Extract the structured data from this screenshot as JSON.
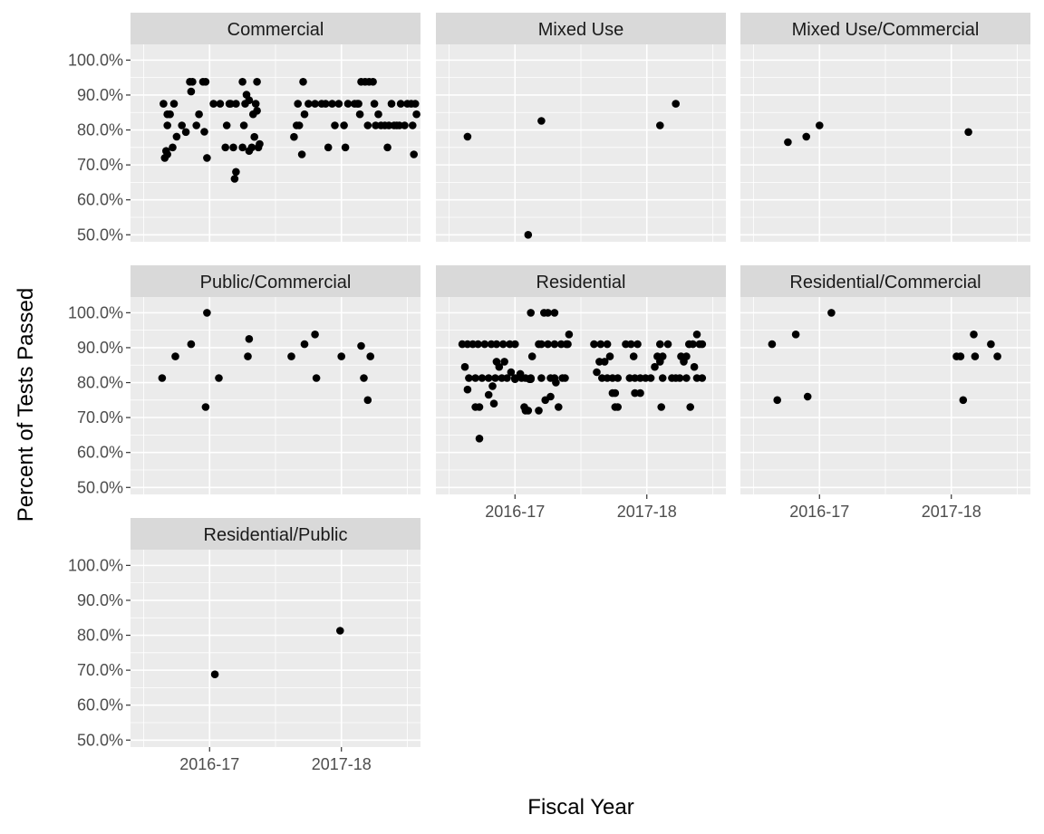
{
  "chart_data": {
    "type": "scatter",
    "facet_layout": "wrap-3-columns",
    "xlabel": "Fiscal Year",
    "ylabel": "Percent of Tests Passed",
    "x_categories": [
      "2016-17",
      "2017-18"
    ],
    "y_ticks": [
      0.5,
      0.6,
      0.7,
      0.8,
      0.9,
      1.0
    ],
    "y_tick_labels": [
      "50.0%",
      "60.0%",
      "70.0%",
      "80.0%",
      "90.0%",
      "100.0%"
    ],
    "ylim": [
      0.48,
      1.045
    ],
    "grid": true,
    "colors": {
      "panel": "#ebebeb",
      "strip": "#d9d9d9",
      "grid": "#ffffff",
      "point": "#000000"
    },
    "facets": [
      {
        "name": "Commercial",
        "points": [
          [
            0.7,
            0.845
          ],
          [
            0.73,
            0.875
          ],
          [
            0.68,
            0.845
          ],
          [
            0.65,
            0.875
          ],
          [
            0.68,
            0.813
          ],
          [
            0.67,
            0.74
          ],
          [
            0.66,
            0.72
          ],
          [
            0.68,
            0.73
          ],
          [
            0.75,
            0.781
          ],
          [
            0.72,
            0.75
          ],
          [
            0.85,
            0.938
          ],
          [
            0.87,
            0.938
          ],
          [
            0.79,
            0.813
          ],
          [
            0.82,
            0.794
          ],
          [
            0.86,
            0.91
          ],
          [
            0.92,
            0.845
          ],
          [
            0.95,
            0.938
          ],
          [
            0.97,
            0.938
          ],
          [
            0.9,
            0.813
          ],
          [
            0.96,
            0.795
          ],
          [
            0.98,
            0.72
          ],
          [
            1.03,
            0.875
          ],
          [
            1.08,
            0.875
          ],
          [
            1.15,
            0.875
          ],
          [
            1.16,
            0.875
          ],
          [
            1.2,
            0.875
          ],
          [
            1.25,
            0.938
          ],
          [
            1.27,
            0.875
          ],
          [
            1.18,
            0.75
          ],
          [
            1.2,
            0.68
          ],
          [
            1.19,
            0.66
          ],
          [
            1.26,
            0.813
          ],
          [
            1.28,
            0.901
          ],
          [
            1.3,
            0.885
          ],
          [
            1.33,
            0.845
          ],
          [
            1.36,
            0.855
          ],
          [
            1.35,
            0.875
          ],
          [
            1.36,
            0.938
          ],
          [
            1.32,
            0.75
          ],
          [
            1.34,
            0.78
          ],
          [
            1.37,
            0.75
          ],
          [
            1.38,
            0.76
          ],
          [
            1.25,
            0.75
          ],
          [
            1.3,
            0.74
          ],
          [
            1.12,
            0.75
          ],
          [
            1.13,
            0.813
          ],
          [
            1.64,
            0.78
          ],
          [
            1.66,
            0.813
          ],
          [
            1.68,
            0.813
          ],
          [
            1.67,
            0.875
          ],
          [
            1.7,
            0.73
          ],
          [
            1.71,
            0.938
          ],
          [
            1.72,
            0.845
          ],
          [
            1.75,
            0.875
          ],
          [
            1.8,
            0.875
          ],
          [
            1.85,
            0.875
          ],
          [
            1.88,
            0.875
          ],
          [
            1.9,
            0.75
          ],
          [
            1.93,
            0.875
          ],
          [
            1.95,
            0.813
          ],
          [
            1.98,
            0.875
          ],
          [
            2.02,
            0.813
          ],
          [
            2.05,
            0.875
          ],
          [
            2.1,
            0.875
          ],
          [
            2.12,
            0.875
          ],
          [
            2.13,
            0.875
          ],
          [
            2.14,
            0.845
          ],
          [
            2.15,
            0.938
          ],
          [
            2.18,
            0.938
          ],
          [
            2.21,
            0.938
          ],
          [
            2.24,
            0.938
          ],
          [
            2.25,
            0.875
          ],
          [
            2.26,
            0.813
          ],
          [
            2.28,
            0.845
          ],
          [
            2.3,
            0.813
          ],
          [
            2.33,
            0.813
          ],
          [
            2.36,
            0.813
          ],
          [
            2.38,
            0.875
          ],
          [
            2.4,
            0.813
          ],
          [
            2.42,
            0.813
          ],
          [
            2.44,
            0.813
          ],
          [
            2.45,
            0.875
          ],
          [
            2.5,
            0.875
          ],
          [
            2.53,
            0.875
          ],
          [
            2.54,
            0.813
          ],
          [
            2.55,
            0.73
          ],
          [
            2.57,
            0.845
          ],
          [
            2.56,
            0.875
          ],
          [
            2.03,
            0.75
          ],
          [
            2.35,
            0.75
          ],
          [
            2.48,
            0.813
          ],
          [
            2.2,
            0.813
          ]
        ]
      },
      {
        "name": "Mixed Use",
        "points": [
          [
            0.64,
            0.781
          ],
          [
            1.1,
            0.5
          ],
          [
            1.2,
            0.826
          ],
          [
            2.1,
            0.813
          ],
          [
            2.22,
            0.875
          ]
        ]
      },
      {
        "name": "Mixed Use/Commercial",
        "points": [
          [
            0.76,
            0.765
          ],
          [
            0.9,
            0.781
          ],
          [
            1.0,
            0.813
          ],
          [
            2.13,
            0.794
          ]
        ]
      },
      {
        "name": "Public/Commercial",
        "points": [
          [
            0.64,
            0.813
          ],
          [
            0.74,
            0.875
          ],
          [
            0.86,
            0.91
          ],
          [
            0.97,
            0.73
          ],
          [
            0.98,
            1.0
          ],
          [
            1.07,
            0.813
          ],
          [
            1.29,
            0.875
          ],
          [
            1.3,
            0.925
          ],
          [
            1.62,
            0.875
          ],
          [
            1.72,
            0.91
          ],
          [
            1.8,
            0.938
          ],
          [
            1.81,
            0.813
          ],
          [
            2.0,
            0.875
          ],
          [
            2.15,
            0.905
          ],
          [
            2.17,
            0.813
          ],
          [
            2.2,
            0.75
          ],
          [
            2.22,
            0.875
          ]
        ]
      },
      {
        "name": "Residential",
        "points": [
          [
            0.6,
            0.91
          ],
          [
            0.64,
            0.91
          ],
          [
            0.68,
            0.91
          ],
          [
            0.72,
            0.91
          ],
          [
            0.77,
            0.91
          ],
          [
            0.82,
            0.91
          ],
          [
            0.86,
            0.91
          ],
          [
            0.91,
            0.91
          ],
          [
            0.96,
            0.91
          ],
          [
            1.0,
            0.91
          ],
          [
            0.62,
            0.845
          ],
          [
            0.65,
            0.813
          ],
          [
            0.7,
            0.813
          ],
          [
            0.75,
            0.813
          ],
          [
            0.8,
            0.813
          ],
          [
            0.85,
            0.813
          ],
          [
            0.9,
            0.813
          ],
          [
            0.94,
            0.813
          ],
          [
            1.0,
            0.813
          ],
          [
            1.05,
            0.813
          ],
          [
            1.08,
            0.813
          ],
          [
            1.12,
            0.813
          ],
          [
            0.64,
            0.78
          ],
          [
            0.7,
            0.73
          ],
          [
            0.73,
            0.73
          ],
          [
            0.73,
            0.64
          ],
          [
            0.83,
            0.79
          ],
          [
            0.86,
            0.86
          ],
          [
            0.88,
            0.845
          ],
          [
            0.92,
            0.86
          ],
          [
            0.8,
            0.765
          ],
          [
            0.84,
            0.74
          ],
          [
            0.97,
            0.83
          ],
          [
            1.0,
            0.81
          ],
          [
            1.04,
            0.825
          ],
          [
            1.07,
            0.73
          ],
          [
            1.08,
            0.72
          ],
          [
            1.11,
            0.81
          ],
          [
            1.12,
            0.81
          ],
          [
            1.13,
            0.875
          ],
          [
            1.1,
            0.72
          ],
          [
            1.12,
            1.0
          ],
          [
            1.18,
            0.91
          ],
          [
            1.22,
            1.0
          ],
          [
            1.25,
            1.0
          ],
          [
            1.3,
            1.0
          ],
          [
            1.2,
            0.91
          ],
          [
            1.25,
            0.91
          ],
          [
            1.3,
            0.91
          ],
          [
            1.35,
            0.91
          ],
          [
            1.4,
            0.91
          ],
          [
            1.2,
            0.813
          ],
          [
            1.27,
            0.813
          ],
          [
            1.3,
            0.813
          ],
          [
            1.36,
            0.813
          ],
          [
            1.38,
            0.813
          ],
          [
            1.18,
            0.72
          ],
          [
            1.23,
            0.75
          ],
          [
            1.27,
            0.76
          ],
          [
            1.33,
            0.73
          ],
          [
            1.31,
            0.8
          ],
          [
            1.39,
            0.91
          ],
          [
            1.41,
            0.938
          ],
          [
            1.6,
            0.91
          ],
          [
            1.65,
            0.91
          ],
          [
            1.7,
            0.91
          ],
          [
            1.68,
            0.86
          ],
          [
            1.64,
            0.86
          ],
          [
            1.62,
            0.83
          ],
          [
            1.66,
            0.813
          ],
          [
            1.7,
            0.813
          ],
          [
            1.74,
            0.813
          ],
          [
            1.78,
            0.813
          ],
          [
            1.72,
            0.875
          ],
          [
            1.74,
            0.77
          ],
          [
            1.76,
            0.77
          ],
          [
            1.76,
            0.73
          ],
          [
            1.78,
            0.73
          ],
          [
            1.84,
            0.91
          ],
          [
            1.88,
            0.91
          ],
          [
            1.93,
            0.91
          ],
          [
            1.9,
            0.875
          ],
          [
            1.87,
            0.813
          ],
          [
            1.91,
            0.813
          ],
          [
            1.95,
            0.813
          ],
          [
            1.99,
            0.813
          ],
          [
            1.91,
            0.77
          ],
          [
            1.95,
            0.77
          ],
          [
            2.03,
            0.813
          ],
          [
            2.06,
            0.845
          ],
          [
            2.08,
            0.875
          ],
          [
            2.1,
            0.86
          ],
          [
            2.12,
            0.875
          ],
          [
            2.12,
            0.813
          ],
          [
            2.1,
            0.91
          ],
          [
            2.16,
            0.91
          ],
          [
            2.11,
            0.73
          ],
          [
            2.19,
            0.813
          ],
          [
            2.22,
            0.813
          ],
          [
            2.25,
            0.813
          ],
          [
            2.26,
            0.875
          ],
          [
            2.28,
            0.86
          ],
          [
            2.3,
            0.813
          ],
          [
            2.3,
            0.875
          ],
          [
            2.32,
            0.91
          ],
          [
            2.35,
            0.91
          ],
          [
            2.36,
            0.845
          ],
          [
            2.38,
            0.813
          ],
          [
            2.38,
            0.938
          ],
          [
            2.4,
            0.91
          ],
          [
            2.42,
            0.813
          ],
          [
            2.42,
            0.91
          ],
          [
            2.33,
            0.73
          ]
        ]
      },
      {
        "name": "Residential/Commercial",
        "points": [
          [
            0.64,
            0.91
          ],
          [
            0.68,
            0.75
          ],
          [
            0.82,
            0.938
          ],
          [
            0.91,
            0.76
          ],
          [
            1.09,
            1.0
          ],
          [
            2.04,
            0.875
          ],
          [
            2.07,
            0.875
          ],
          [
            2.09,
            0.75
          ],
          [
            2.17,
            0.938
          ],
          [
            2.18,
            0.875
          ],
          [
            2.3,
            0.91
          ],
          [
            2.35,
            0.875
          ]
        ]
      },
      {
        "name": "Residential/Public",
        "points": [
          [
            1.04,
            0.688
          ],
          [
            1.99,
            0.813
          ]
        ]
      }
    ]
  }
}
